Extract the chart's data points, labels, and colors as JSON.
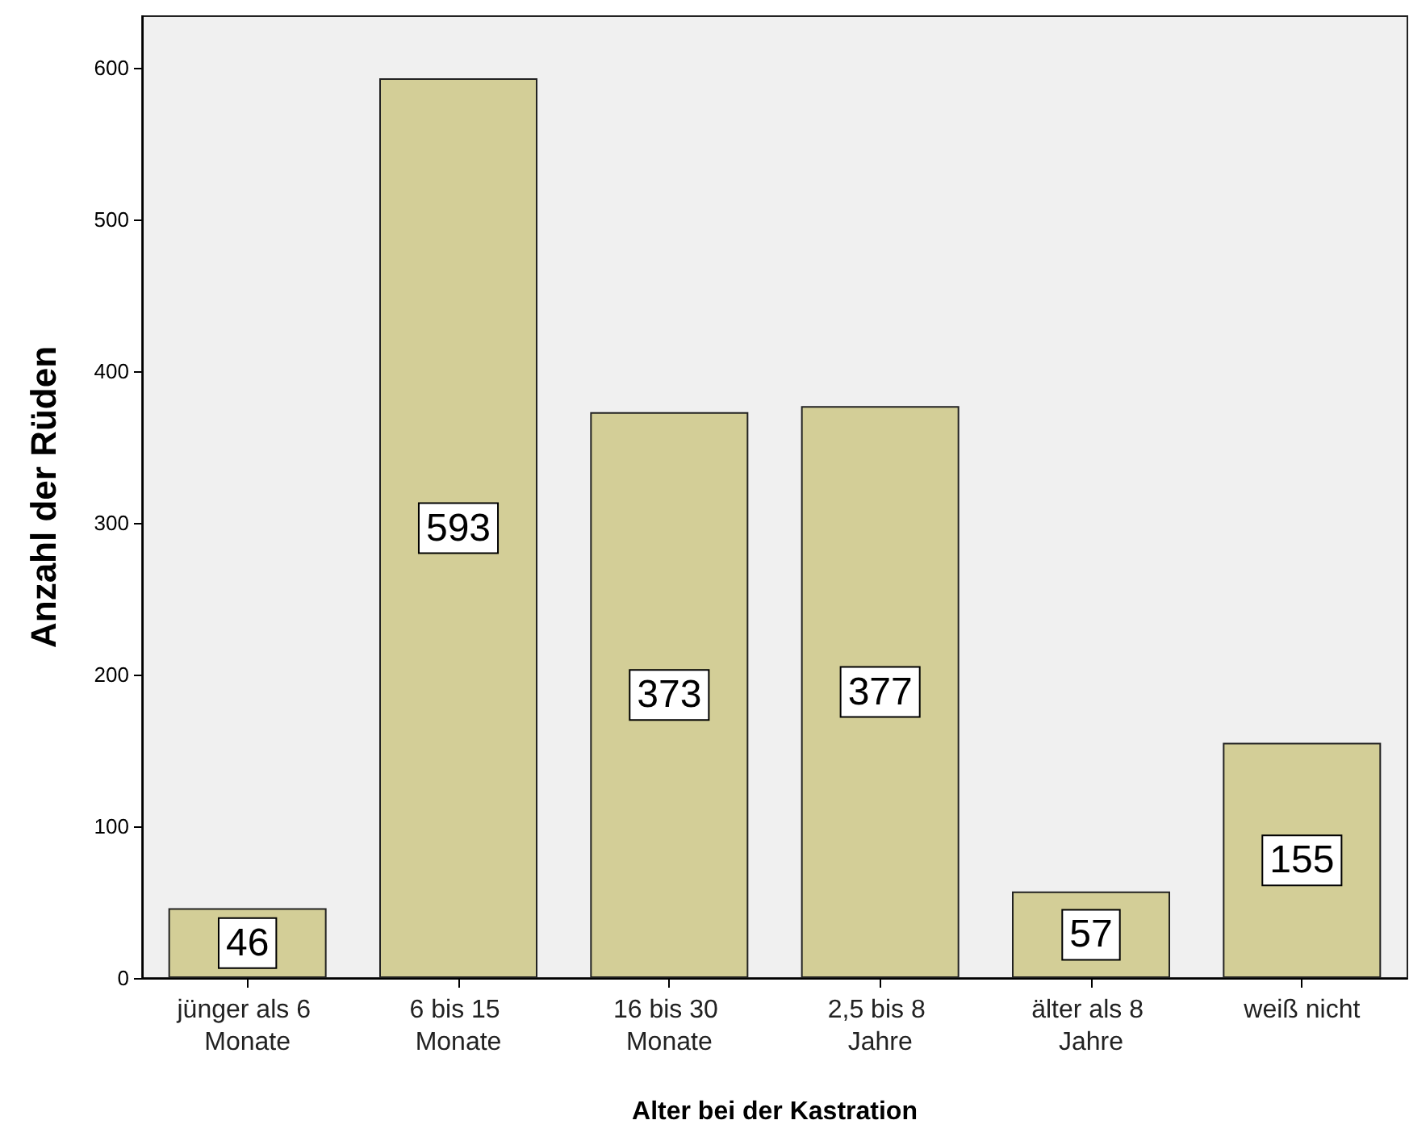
{
  "chart_data": {
    "type": "bar",
    "xlabel": "Alter bei der Kastration",
    "ylabel": "Anzahl der Rüden",
    "categories": [
      "jünger als 6 Monate",
      "6 bis 15 Monate",
      "16 bis 30 Monate",
      "2,5 bis 8 Jahre",
      "älter als 8 Jahre",
      "weiß nicht"
    ],
    "values": [
      46,
      593,
      373,
      377,
      57,
      155
    ],
    "color": "#d3ce97",
    "ylim": [
      0,
      634
    ],
    "yticks": [
      0,
      100,
      200,
      300,
      400,
      500,
      600
    ],
    "grid": false,
    "data_labels": true
  }
}
